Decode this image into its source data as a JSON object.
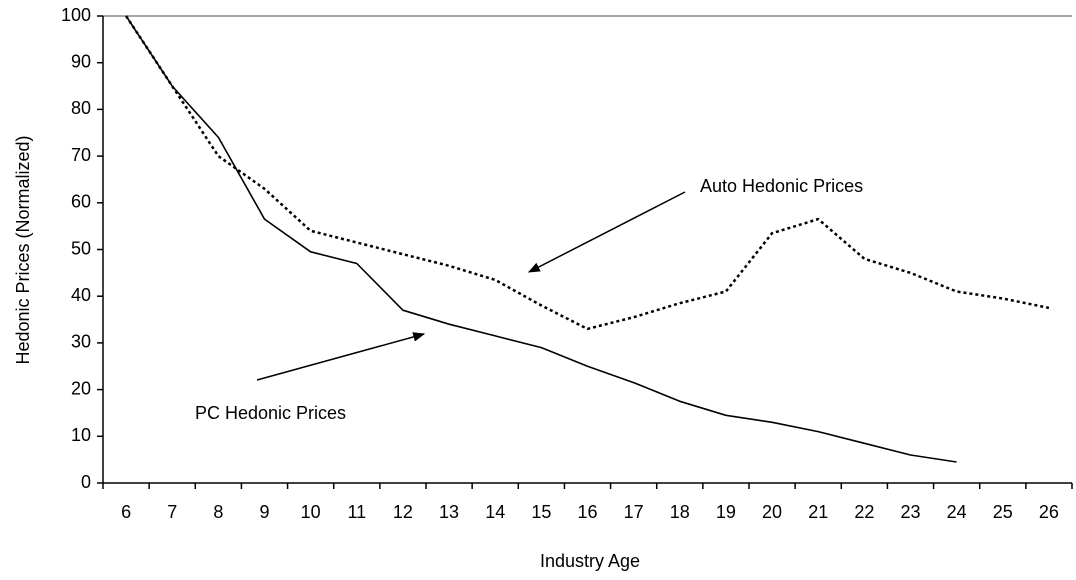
{
  "chart_data": {
    "type": "line",
    "xlabel": "Industry Age",
    "ylabel": "Hedonic Prices (Normalized)",
    "categories": [
      "6",
      "7",
      "8",
      "9",
      "10",
      "11",
      "12",
      "13",
      "14",
      "15",
      "16",
      "17",
      "18",
      "19",
      "20",
      "21",
      "22",
      "23",
      "24",
      "25",
      "26"
    ],
    "series": [
      {
        "name": "PC Hedonic Prices",
        "color": "#000000",
        "style": "solid",
        "values": [
          100,
          85,
          74,
          56.5,
          49.5,
          47,
          37,
          34,
          31.5,
          29,
          25,
          21.5,
          17.5,
          14.5,
          13,
          11,
          8.5,
          6,
          4.5,
          null,
          null
        ]
      },
      {
        "name": "Auto Hedonic Prices",
        "color": "#000000",
        "style": "dotted",
        "values": [
          100,
          85,
          70,
          63,
          54,
          51.5,
          49,
          46.5,
          43.5,
          38,
          33,
          35.5,
          38.5,
          41,
          53.5,
          56.5,
          48,
          45,
          41,
          39.5,
          37.5
        ]
      }
    ],
    "ylim": [
      0,
      100
    ],
    "yticks": [
      0,
      10,
      20,
      30,
      40,
      50,
      60,
      70,
      80,
      90,
      100
    ],
    "grid": false
  }
}
